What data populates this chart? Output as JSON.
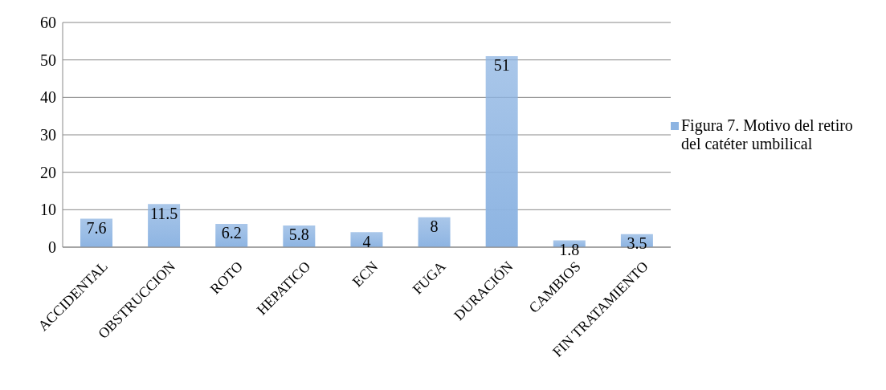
{
  "chart_data": {
    "type": "bar",
    "categories": [
      "ACCIDENTAL",
      "OBSTRUCCION",
      "ROTO",
      "HEPATICO",
      "ECN",
      "FUGA",
      "DURACIÓN",
      "CAMBIOS",
      "FIN TRATAMIENTO"
    ],
    "series": [
      {
        "name": "Figura 7. Motivo del retiro del catéter umbilical",
        "color": "#8db4e2",
        "values": [
          7.6,
          11.5,
          6.2,
          5.8,
          4,
          8,
          51,
          1.8,
          3.5
        ]
      }
    ],
    "ylim": [
      0,
      60
    ],
    "yticks": [
      0,
      10,
      20,
      30,
      40,
      50,
      60
    ],
    "grid": "y",
    "legend": "right",
    "data_labels": true
  }
}
